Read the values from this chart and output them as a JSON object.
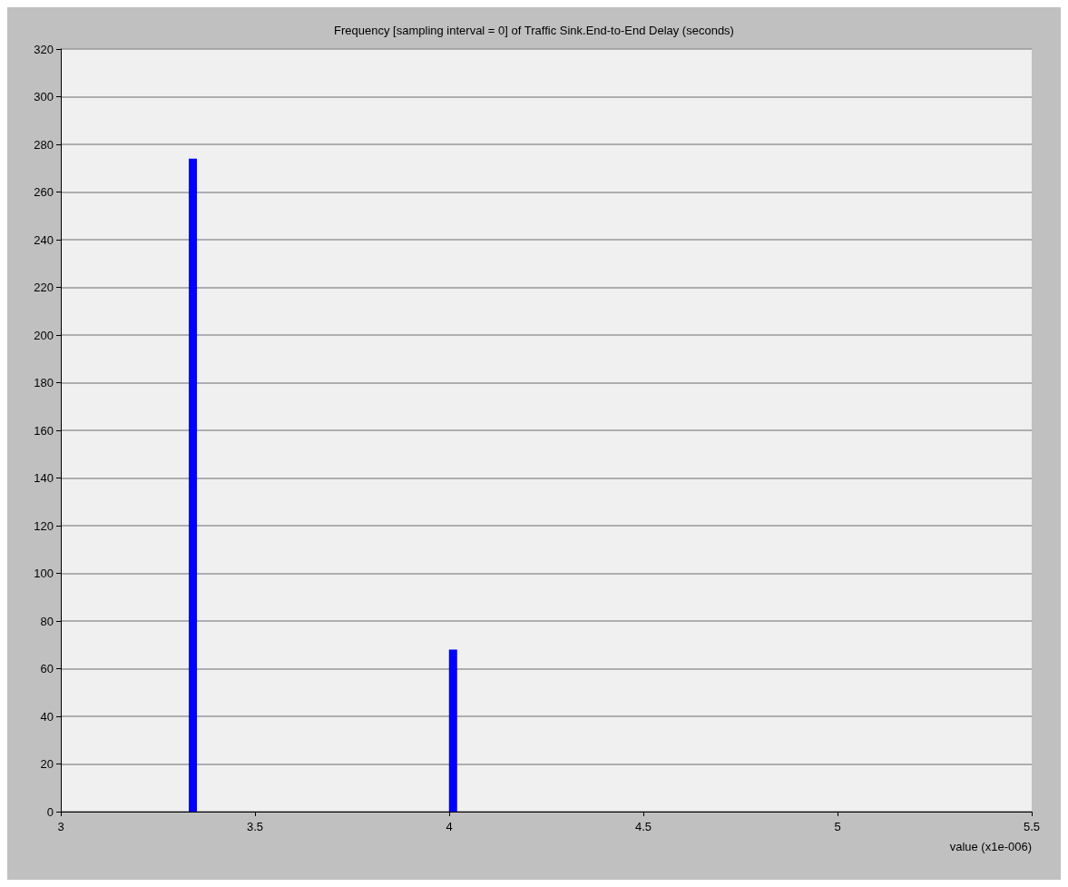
{
  "chart_data": {
    "type": "bar",
    "title": "Frequency [sampling interval = 0] of Traffic Sink.End-to-End Delay (seconds)",
    "xlabel": "value (x1e-006)",
    "x": [
      3.34,
      4.01
    ],
    "values": [
      274,
      68
    ],
    "color": "#0000ff",
    "xlim": [
      3,
      5.5
    ],
    "xticks": [
      3,
      3.5,
      4,
      4.5,
      5,
      5.5
    ],
    "ylim": [
      0,
      320
    ],
    "yticks": [
      0,
      20,
      40,
      60,
      80,
      100,
      120,
      140,
      160,
      180,
      200,
      220,
      240,
      260,
      280,
      300,
      320
    ],
    "grid": "y"
  }
}
